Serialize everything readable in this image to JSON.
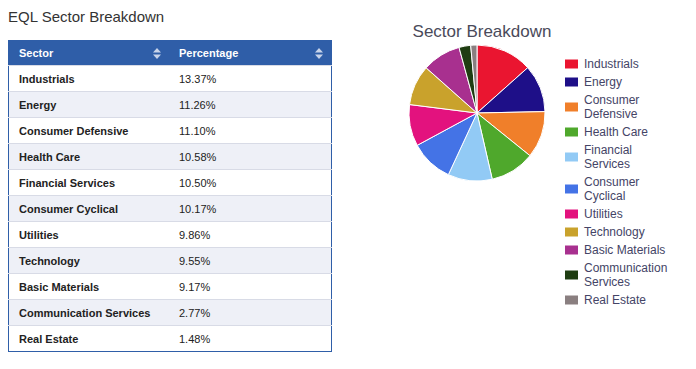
{
  "title": "EQL Sector Breakdown",
  "table": {
    "header": [
      "Sector",
      "Percentage"
    ],
    "rows": [
      [
        "Industrials",
        "13.37%"
      ],
      [
        "Energy",
        "11.26%"
      ],
      [
        "Consumer Defensive",
        "11.10%"
      ],
      [
        "Health Care",
        "10.58%"
      ],
      [
        "Financial Services",
        "10.50%"
      ],
      [
        "Consumer Cyclical",
        "10.17%"
      ],
      [
        "Utilities",
        "9.86%"
      ],
      [
        "Technology",
        "9.55%"
      ],
      [
        "Basic Materials",
        "9.17%"
      ],
      [
        "Communication Services",
        "2.77%"
      ],
      [
        "Real Estate",
        "1.48%"
      ]
    ]
  },
  "chart_data": {
    "type": "pie",
    "title": "Sector Breakdown",
    "categories": [
      "Industrials",
      "Energy",
      "Consumer Defensive",
      "Health Care",
      "Financial Services",
      "Consumer Cyclical",
      "Utilities",
      "Technology",
      "Basic Materials",
      "Communication Services",
      "Real Estate"
    ],
    "values": [
      13.37,
      11.26,
      11.1,
      10.58,
      10.5,
      10.17,
      9.86,
      9.55,
      9.17,
      2.77,
      1.48
    ],
    "colors": [
      "#ea1530",
      "#1e0f88",
      "#f07f2a",
      "#4fa82c",
      "#92caf5",
      "#4473e6",
      "#e3127e",
      "#c9a22c",
      "#a8308f",
      "#1f3d12",
      "#8a7f80"
    ],
    "legend": "right"
  }
}
